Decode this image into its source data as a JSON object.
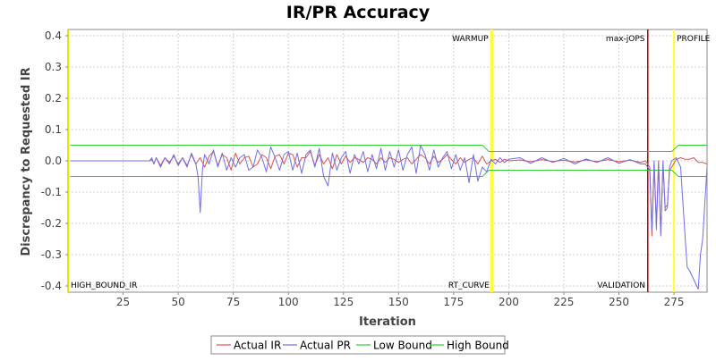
{
  "chart_data": {
    "type": "line",
    "title": "IR/PR Accuracy",
    "xlabel": "Iteration",
    "ylabel": "Discrepancy to Requested IR",
    "xlim": [
      0,
      290
    ],
    "ylim": [
      -0.42,
      0.42
    ],
    "x_ticks": [
      25,
      50,
      75,
      100,
      125,
      150,
      175,
      200,
      225,
      250,
      275
    ],
    "y_ticks": [
      0.4,
      0.3,
      0.2,
      0.1,
      0.0,
      -0.1,
      -0.2,
      -0.3,
      -0.4
    ],
    "y_tick_labels": [
      "0.4",
      "0.3",
      "0.2",
      "0.1",
      "0.0",
      "-0.1",
      "-0.2",
      "-0.3",
      "-0.4"
    ],
    "grid": true,
    "legend_position": "bottom",
    "markers": [
      {
        "x": 0,
        "label": "HIGH_BOUND_IR",
        "label_pos": "bottom-right",
        "color": "#e6e600"
      },
      {
        "x": 192,
        "label": "WARMUP",
        "label_pos": "top-left",
        "color": "#ffff33"
      },
      {
        "x": 192.5,
        "label": "RT_CURVE",
        "label_pos": "bottom-left",
        "color": "#ffff33"
      },
      {
        "x": 263,
        "label": "max-jOPS",
        "label_pos": "top-left",
        "color": "#b00000"
      },
      {
        "x": 263.2,
        "label": "VALIDATION",
        "label_pos": "bottom-left",
        "color": "#b00000"
      },
      {
        "x": 275,
        "label": "PROFILE",
        "label_pos": "top-right",
        "color": "#ffff33"
      }
    ],
    "series": [
      {
        "name": "Actual IR",
        "color": "#e05050",
        "x": [
          1,
          37,
          38,
          39,
          40,
          42,
          44,
          46,
          48,
          50,
          52,
          54,
          56,
          58,
          60,
          62,
          64,
          66,
          68,
          70,
          72,
          74,
          76,
          78,
          80,
          82,
          84,
          86,
          88,
          90,
          92,
          94,
          96,
          98,
          100,
          102,
          104,
          106,
          108,
          110,
          112,
          114,
          116,
          118,
          120,
          122,
          124,
          126,
          128,
          130,
          132,
          134,
          136,
          138,
          140,
          142,
          144,
          146,
          148,
          150,
          152,
          154,
          156,
          158,
          160,
          162,
          164,
          166,
          168,
          170,
          172,
          174,
          176,
          178,
          180,
          182,
          184,
          186,
          188,
          190,
          192,
          194,
          196,
          198,
          200,
          205,
          210,
          215,
          220,
          225,
          230,
          235,
          240,
          245,
          250,
          255,
          260,
          262,
          264,
          265,
          266,
          267,
          268,
          269,
          270,
          271,
          272,
          273,
          274,
          276,
          278,
          280,
          282,
          284,
          286,
          288,
          290
        ],
        "y": [
          0,
          0,
          0.005,
          -0.01,
          0.01,
          -0.015,
          0.01,
          -0.005,
          0.015,
          -0.01,
          0.01,
          -0.015,
          0.02,
          -0.01,
          0.01,
          -0.02,
          0.015,
          0.03,
          -0.015,
          0.02,
          0.01,
          -0.03,
          0.025,
          -0.01,
          0.01,
          0.015,
          -0.02,
          -0.01,
          0.02,
          0.01,
          -0.025,
          0.015,
          0.02,
          -0.01,
          0.025,
          0.02,
          -0.02,
          0.01,
          0.01,
          0.03,
          -0.015,
          0.02,
          -0.01,
          0.01,
          -0.025,
          0.02,
          -0.01,
          0.015,
          -0.005,
          0.01,
          0.005,
          -0.005,
          0.01,
          0.005,
          -0.01,
          0.01,
          -0.005,
          0.01,
          0.005,
          -0.005,
          0.005,
          0.01,
          -0.01,
          0.005,
          0.02,
          0.01,
          -0.01,
          0.015,
          -0.005,
          0.005,
          0.02,
          0.005,
          -0.01,
          0.01,
          -0.005,
          0.005,
          0.01,
          -0.01,
          0.015,
          -0.01,
          0,
          0.005,
          -0.005,
          0.005,
          0,
          0.003,
          -0.003,
          0.004,
          -0.002,
          0.002,
          -0.004,
          0.003,
          -0.002,
          0.004,
          -0.003,
          0.002,
          -0.005,
          0,
          -0.02,
          -0.24,
          -0.01,
          -0.2,
          0,
          -0.23,
          -0.01,
          -0.15,
          -0.14,
          -0.03,
          -0.02,
          0.005,
          0.01,
          0.005,
          0.005,
          0.01,
          -0.005,
          -0.005,
          -0.01
        ]
      },
      {
        "name": "Actual PR",
        "color": "#6f6fe8",
        "x": [
          1,
          37,
          38,
          39,
          40,
          42,
          44,
          46,
          48,
          50,
          52,
          54,
          56,
          58,
          59,
          60,
          61,
          62,
          64,
          66,
          68,
          70,
          72,
          74,
          76,
          78,
          80,
          82,
          84,
          86,
          88,
          90,
          92,
          94,
          96,
          98,
          100,
          102,
          104,
          106,
          108,
          110,
          112,
          114,
          116,
          118,
          120,
          122,
          124,
          126,
          128,
          130,
          132,
          134,
          136,
          138,
          140,
          142,
          144,
          146,
          148,
          150,
          152,
          154,
          156,
          158,
          160,
          162,
          164,
          166,
          168,
          170,
          172,
          174,
          176,
          178,
          180,
          182,
          184,
          186,
          188,
          190,
          192,
          194,
          196,
          198,
          200,
          205,
          210,
          215,
          220,
          225,
          230,
          235,
          240,
          245,
          250,
          255,
          260,
          262,
          264,
          265,
          266,
          267,
          268,
          269,
          270,
          271,
          272,
          273,
          274,
          276,
          278,
          280,
          281,
          282,
          284,
          286,
          287,
          288,
          290
        ],
        "y": [
          0,
          0,
          0.01,
          -0.01,
          0.01,
          -0.02,
          0.01,
          -0.01,
          0.02,
          -0.015,
          0.01,
          -0.02,
          0.025,
          -0.01,
          -0.05,
          -0.165,
          -0.03,
          0.02,
          -0.01,
          0.035,
          -0.02,
          0.025,
          -0.03,
          0.01,
          -0.02,
          0.01,
          0.02,
          -0.03,
          -0.02,
          0.035,
          0.01,
          -0.035,
          0.045,
          0.01,
          -0.03,
          0.02,
          0.03,
          -0.03,
          0.025,
          -0.04,
          0.02,
          0.035,
          -0.02,
          0.04,
          -0.05,
          -0.08,
          0.025,
          -0.03,
          0.01,
          0.03,
          -0.04,
          0.02,
          -0.01,
          0.03,
          -0.035,
          0.02,
          -0.025,
          0.04,
          -0.03,
          0.03,
          -0.02,
          0.035,
          -0.03,
          0.02,
          0.045,
          -0.04,
          0.05,
          0.02,
          -0.03,
          0.035,
          -0.02,
          0.01,
          0.03,
          -0.025,
          0.02,
          -0.03,
          0.01,
          -0.07,
          0.02,
          -0.065,
          -0.02,
          -0.035,
          0.005,
          -0.01,
          0.01,
          -0.005,
          0.005,
          0.01,
          -0.008,
          0.01,
          -0.005,
          0.008,
          -0.01,
          0.006,
          -0.005,
          0.01,
          -0.008,
          0.004,
          -0.01,
          -0.01,
          -0.03,
          -0.22,
          0,
          -0.22,
          -0.01,
          -0.24,
          0,
          -0.16,
          -0.15,
          -0.02,
          0,
          0.01,
          -0.02,
          -0.24,
          -0.34,
          -0.35,
          -0.38,
          -0.41,
          -0.3,
          -0.25,
          -0.02
        ]
      },
      {
        "name": "Low Bound",
        "color": "#33cc33",
        "x": [
          1,
          188,
          191,
          274,
          277,
          290
        ],
        "y": [
          -0.05,
          -0.05,
          -0.03,
          -0.03,
          -0.05,
          -0.05
        ]
      },
      {
        "name": "High Bound",
        "color": "#33cc33",
        "x": [
          1,
          188,
          191,
          274,
          277,
          290
        ],
        "y": [
          0.05,
          0.05,
          0.03,
          0.03,
          0.05,
          0.05
        ]
      }
    ]
  }
}
